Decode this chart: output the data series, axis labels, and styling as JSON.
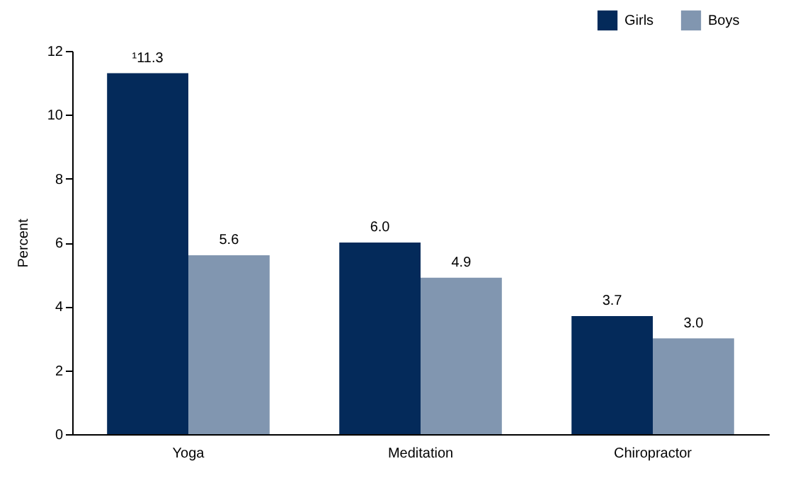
{
  "chart_data": {
    "type": "bar",
    "ylabel": "Percent",
    "categories": [
      "Yoga",
      "Meditation",
      "Chiropractor"
    ],
    "series": [
      {
        "name": "Girls",
        "color": "#042a5a",
        "values": [
          11.3,
          6.0,
          3.7
        ],
        "value_labels": [
          "¹11.3",
          "6.0",
          "3.7"
        ]
      },
      {
        "name": "Boys",
        "color": "#8196b0",
        "values": [
          5.6,
          4.9,
          3.0
        ],
        "value_labels": [
          "5.6",
          "4.9",
          "3.0"
        ]
      }
    ],
    "ylim": [
      0,
      12
    ],
    "yticks": [
      0,
      2,
      4,
      6,
      8,
      10,
      12
    ],
    "grid": false,
    "legend": "top right"
  }
}
